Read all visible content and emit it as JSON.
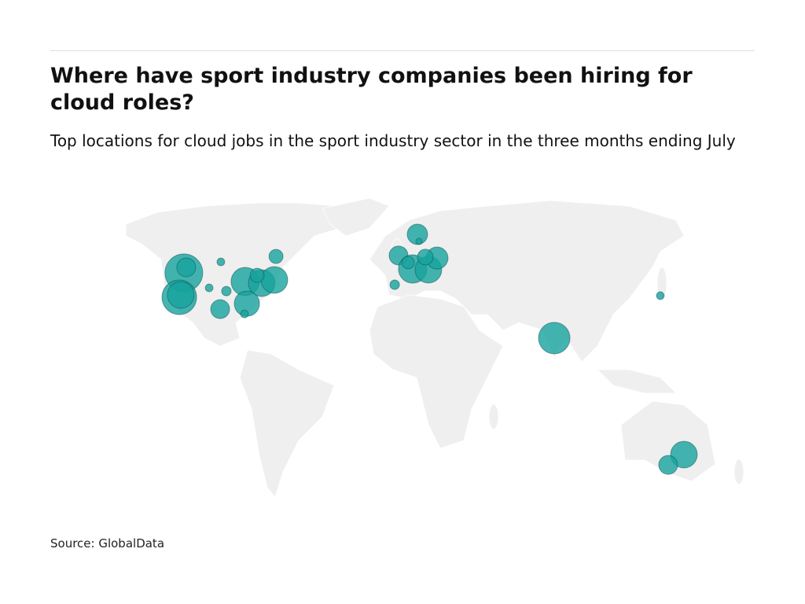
{
  "chart_data": {
    "type": "bubble-map",
    "title": "Where have sport industry companies been hiring for cloud roles?",
    "subtitle": "Top locations for cloud jobs in the sport industry sector in the three months ending July",
    "source": "Source: GlobalData",
    "color": "#17a29e",
    "lon": [
      -118.5,
      -117.2,
      -121.0,
      -120.2,
      -98.7,
      -104.7,
      -98.3,
      -68.2,
      -85.0,
      -76.0,
      -69.1,
      -84.1,
      -85.4,
      -95.3,
      -78.5,
      9.0,
      -1.3,
      -3.4,
      6.4,
      15.0,
      19.7,
      13.3,
      9.9,
      3.9,
      83.7,
      141.6,
      154.5,
      145.9
    ],
    "lat": [
      45.2,
      47.6,
      34.5,
      35.5,
      29.3,
      38.6,
      50.0,
      52.4,
      41.4,
      40.7,
      42.1,
      31.7,
      27.2,
      37.2,
      44.1,
      62.1,
      52.8,
      40.0,
      46.9,
      46.6,
      51.7,
      52.1,
      59.0,
      49.7,
      16.6,
      35.2,
      -34.5,
      -39.0
    ],
    "values": [
      144,
      36,
      121,
      72,
      36,
      6,
      6,
      20,
      81,
      72,
      72,
      64,
      6,
      9,
      20,
      42,
      36,
      9,
      81,
      72,
      49,
      25,
      4,
      16,
      100,
      6,
      72,
      36
    ]
  }
}
